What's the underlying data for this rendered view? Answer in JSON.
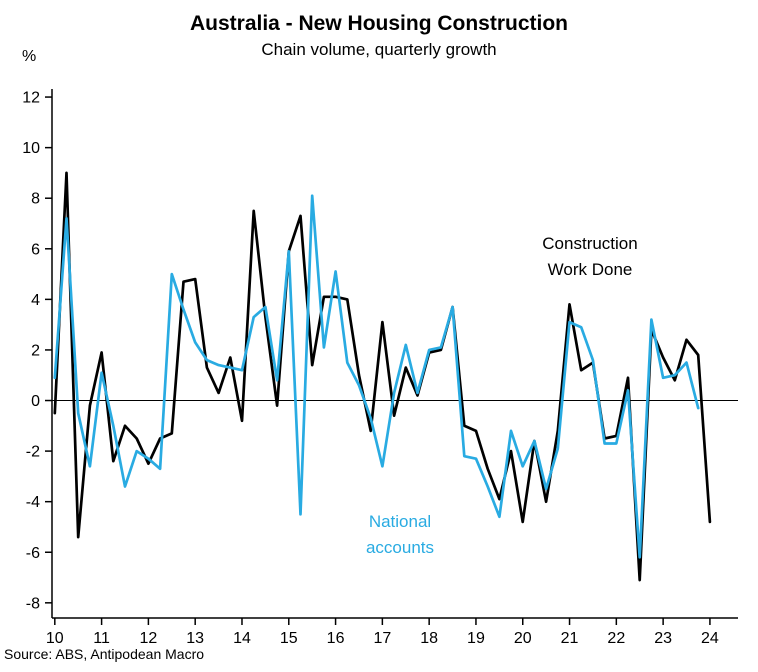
{
  "title": "Australia - New Housing Construction",
  "subtitle": "Chain volume, quarterly growth",
  "y_axis_unit": "%",
  "source": "Source: ABS, Antipodean Macro",
  "annotations": {
    "construction": {
      "line1": "Construction",
      "line2": "Work Done",
      "color": "#000000"
    },
    "national": {
      "line1": "National",
      "line2": "accounts",
      "color": "#29abe2"
    }
  },
  "chart_data": {
    "type": "line",
    "title": "Australia - New Housing Construction",
    "subtitle": "Chain volume, quarterly growth",
    "xlabel": "",
    "ylabel": "%",
    "xlim": [
      10,
      24.6
    ],
    "ylim": [
      -8,
      12
    ],
    "grid": false,
    "zero_line": true,
    "legend_position": "annotations-on-plot",
    "x_start": 10.0,
    "x_step": 0.25,
    "x_ticks": [
      10,
      11,
      12,
      13,
      14,
      15,
      16,
      17,
      18,
      19,
      20,
      21,
      22,
      23,
      24
    ],
    "y_ticks": [
      12,
      10,
      8,
      6,
      4,
      2,
      0,
      -2,
      -4,
      -6,
      -8
    ],
    "series": [
      {
        "name": "Construction Work Done",
        "color": "#000000",
        "values": [
          -0.5,
          9.0,
          -5.4,
          -0.2,
          1.9,
          -2.4,
          -1.0,
          -1.5,
          -2.5,
          -1.5,
          -1.3,
          4.7,
          4.8,
          1.3,
          0.3,
          1.7,
          -0.8,
          7.5,
          3.3,
          -0.2,
          5.9,
          7.3,
          1.4,
          4.1,
          4.1,
          4.0,
          1.0,
          -1.2,
          3.1,
          -0.6,
          1.3,
          0.2,
          1.9,
          2.0,
          3.7,
          -1.0,
          -1.2,
          -2.7,
          -3.9,
          -2.0,
          -4.8,
          -1.6,
          -4.0,
          -1.2,
          3.8,
          1.2,
          1.5,
          -1.5,
          -1.4,
          0.9,
          -7.1,
          2.8,
          1.7,
          0.8,
          2.4,
          1.8,
          -4.8
        ]
      },
      {
        "name": "National accounts",
        "color": "#29abe2",
        "values": [
          0.9,
          7.2,
          -0.5,
          -2.6,
          1.1,
          -1.0,
          -3.4,
          -2.0,
          -2.3,
          -2.7,
          5.0,
          3.6,
          2.3,
          1.6,
          1.4,
          1.3,
          1.2,
          3.3,
          3.7,
          0.8,
          5.9,
          -4.5,
          8.1,
          2.1,
          5.1,
          1.5,
          0.6,
          -0.7,
          -2.6,
          0.3,
          2.2,
          0.3,
          2.0,
          2.1,
          3.7,
          -2.2,
          -2.3,
          -3.4,
          -4.6,
          -1.2,
          -2.6,
          -1.6,
          -3.5,
          -1.9,
          3.1,
          2.9,
          1.6,
          -1.7,
          -1.7,
          0.4,
          -6.2,
          3.2,
          0.9,
          1.0,
          1.5,
          -0.3
        ]
      }
    ]
  }
}
